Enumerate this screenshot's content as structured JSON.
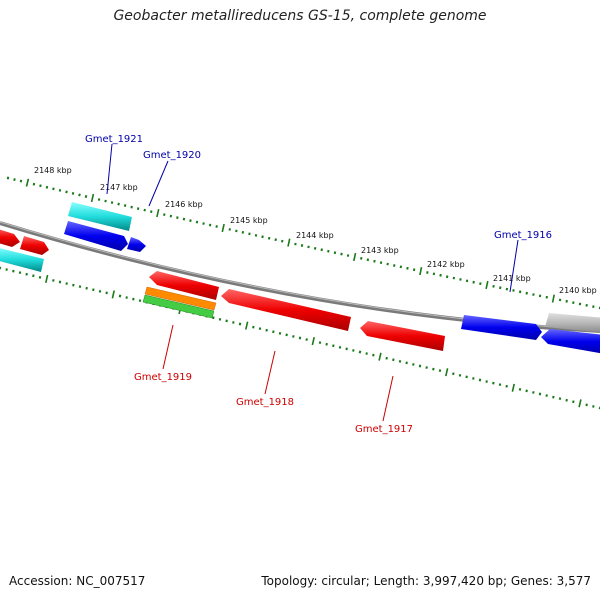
{
  "title": "Geobacter metallireducens GS-15, complete genome",
  "footer": {
    "accession": "Accession: NC_007517",
    "topology": "Topology: circular; Length: 3,997,420 bp; Genes: 3,577"
  },
  "scale": {
    "ticks": [
      {
        "label": "2148 kbp"
      },
      {
        "label": "2147 kbp"
      },
      {
        "label": "2146 kbp"
      },
      {
        "label": "2145 kbp"
      },
      {
        "label": "2144 kbp"
      },
      {
        "label": "2143 kbp"
      },
      {
        "label": "2142 kbp"
      },
      {
        "label": "2141 kbp"
      },
      {
        "label": "2140 kbp"
      }
    ]
  },
  "genes": {
    "forward": [
      {
        "label": "Gmet_1921",
        "color": "#0000aa"
      },
      {
        "label": "Gmet_1920",
        "color": "#0000aa"
      },
      {
        "label": "Gmet_1916",
        "color": "#0000aa"
      }
    ],
    "reverse": [
      {
        "label": "Gmet_1919",
        "color": "#cc0000"
      },
      {
        "label": "Gmet_1918",
        "color": "#cc0000"
      },
      {
        "label": "Gmet_1917",
        "color": "#cc0000"
      }
    ]
  },
  "colors": {
    "backbone": "#808080",
    "tick": "#1a7a1a",
    "cds_forward": "#0000ff",
    "cds_reverse": "#ff0000",
    "rna_cyan": "#00cccc",
    "orange": "#ff8800",
    "green": "#33bb33",
    "gray_feature": "#b0b0b0"
  }
}
